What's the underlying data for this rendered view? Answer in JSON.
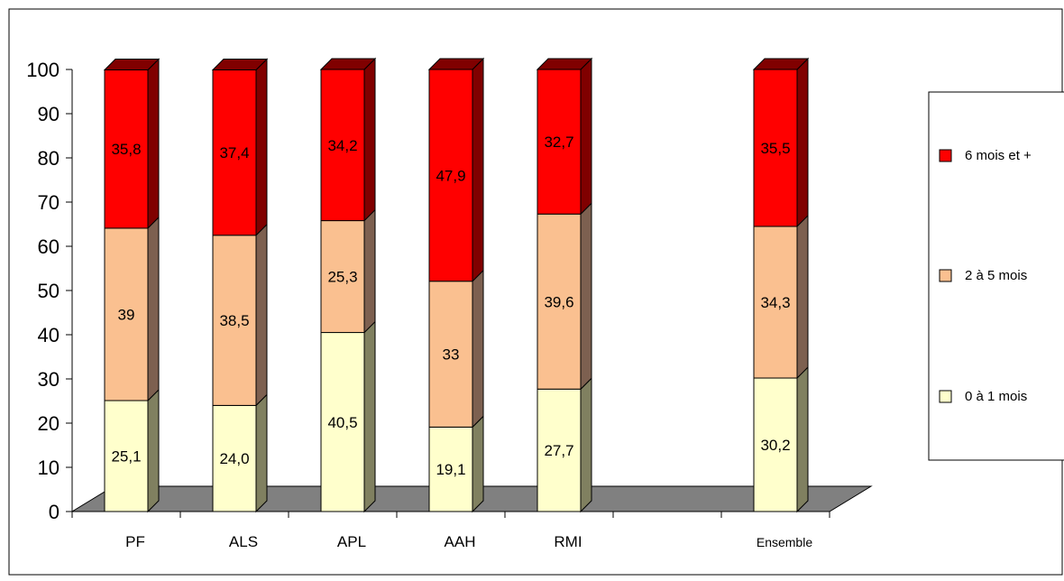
{
  "chart_data": {
    "type": "bar",
    "stacked": true,
    "three_d": true,
    "categories": [
      "PF",
      "ALS",
      "APL",
      "AAH",
      "RMI",
      "",
      "Ensemble"
    ],
    "series": [
      {
        "name": "0 à 1 mois",
        "color": "#ffffcc",
        "side_color": "#808060",
        "values": [
          25.1,
          24.0,
          40.5,
          19.1,
          27.7,
          null,
          30.2
        ],
        "labels": [
          "25,1",
          "24,0",
          "40,5",
          "19,1",
          "27,7",
          "",
          "30,2"
        ]
      },
      {
        "name": "2 à 5 mois",
        "color": "#fac090",
        "side_color": "#7d6050",
        "values": [
          39,
          38.5,
          25.3,
          33,
          39.6,
          null,
          34.3
        ],
        "labels": [
          "39",
          "38,5",
          "25,3",
          "33",
          "39,6",
          "",
          "34,3"
        ]
      },
      {
        "name": "6 mois et +",
        "color": "#ff0000",
        "side_color": "#800000",
        "values": [
          35.8,
          37.4,
          34.2,
          47.9,
          32.7,
          null,
          35.5
        ],
        "labels": [
          "35,8",
          "37,4",
          "34,2",
          "47,9",
          "32,7",
          "",
          "35,5"
        ]
      }
    ],
    "y_ticks": [
      "0",
      "10",
      "20",
      "30",
      "40",
      "50",
      "60",
      "70",
      "80",
      "90",
      "100"
    ],
    "ylim": [
      0,
      100
    ],
    "floor_color": "#808080",
    "legend_position": "right"
  }
}
